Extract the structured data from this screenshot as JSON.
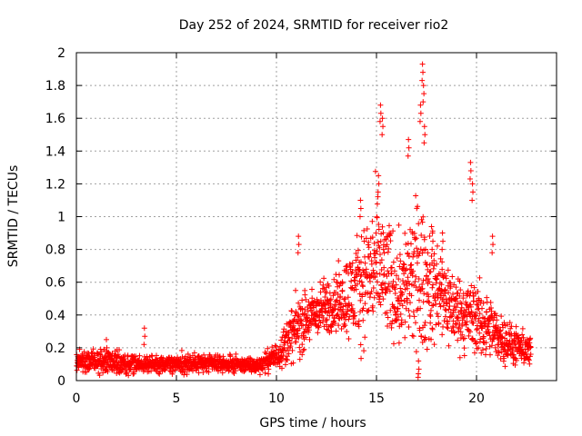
{
  "chart_data": {
    "type": "scatter",
    "title": "Day 252 of 2024, SRMTID for receiver rio2",
    "xlabel": "GPS time / hours",
    "ylabel": "SRMTID / TECUs",
    "xlim": [
      0,
      24
    ],
    "ylim": [
      0,
      2
    ],
    "xticks": [
      0,
      5,
      10,
      15,
      20
    ],
    "xtick_labels": [
      "0",
      "5",
      "10",
      "15",
      "20"
    ],
    "yticks": [
      0,
      0.2,
      0.4,
      0.6,
      0.8,
      1.0,
      1.2,
      1.4,
      1.6,
      1.8,
      2.0
    ],
    "ytick_labels": [
      "0",
      "0.2",
      "0.4",
      "0.6",
      "0.8",
      "1",
      "1.2",
      "1.4",
      "1.6",
      "1.8",
      "2"
    ],
    "grid": true,
    "marker": "plus",
    "marker_color": "#ff0000",
    "envelope": {
      "description": "approximate typical value (y) and spread (s) vs GPS hour; individual points scatter around y",
      "hours": [
        0,
        1,
        2,
        3,
        4,
        5,
        6,
        7,
        8,
        9,
        10,
        11,
        12,
        13,
        14,
        15,
        16,
        17,
        18,
        19,
        20,
        21,
        22,
        22.7
      ],
      "y": [
        0.12,
        0.12,
        0.11,
        0.1,
        0.1,
        0.1,
        0.11,
        0.1,
        0.1,
        0.09,
        0.15,
        0.32,
        0.42,
        0.48,
        0.55,
        0.7,
        0.55,
        0.62,
        0.55,
        0.42,
        0.38,
        0.28,
        0.2,
        0.18
      ],
      "s": [
        0.04,
        0.05,
        0.04,
        0.04,
        0.03,
        0.04,
        0.04,
        0.03,
        0.03,
        0.03,
        0.05,
        0.12,
        0.1,
        0.12,
        0.2,
        0.28,
        0.2,
        0.3,
        0.2,
        0.14,
        0.15,
        0.1,
        0.07,
        0.06
      ]
    },
    "peaks": [
      {
        "x": 1.5,
        "y": 0.25
      },
      {
        "x": 3.4,
        "y": 0.32
      },
      {
        "x": 11.1,
        "y": 0.88
      },
      {
        "x": 14.2,
        "y": 1.1
      },
      {
        "x": 15.2,
        "y": 1.68
      },
      {
        "x": 15.3,
        "y": 1.6
      },
      {
        "x": 16.6,
        "y": 1.47
      },
      {
        "x": 17.3,
        "y": 1.93
      },
      {
        "x": 17.35,
        "y": 1.8
      },
      {
        "x": 17.2,
        "y": 1.68
      },
      {
        "x": 17.4,
        "y": 1.55
      },
      {
        "x": 19.7,
        "y": 1.33
      },
      {
        "x": 19.8,
        "y": 1.2
      },
      {
        "x": 20.8,
        "y": 0.88
      },
      {
        "x": 17.1,
        "y": 0.12
      },
      {
        "x": 15.1,
        "y": 1.25
      },
      {
        "x": 17.8,
        "y": 0.9
      },
      {
        "x": 18.3,
        "y": 0.9
      }
    ],
    "sample_interval_hours": 0.02,
    "time_end": 22.7
  }
}
